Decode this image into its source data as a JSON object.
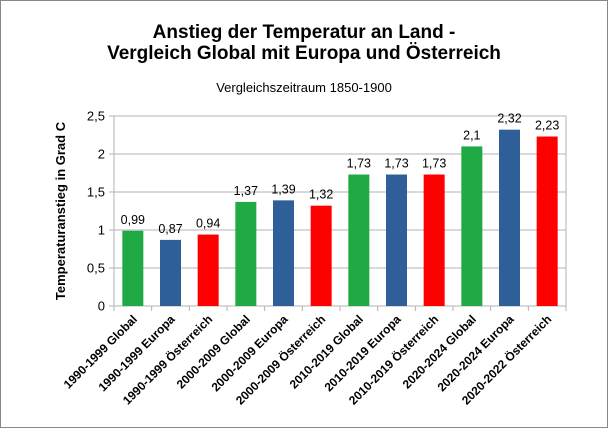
{
  "chart_data": {
    "type": "bar",
    "title": "Anstieg der Temperatur an Land -",
    "title_line2": "Vergleich Global mit Europa und Österreich",
    "subtitle": "Vergleichszeitraum 1850-1900",
    "ylabel": "Temperaturanstieg in Grad C",
    "xlabel": "",
    "ylim": [
      0,
      2.5
    ],
    "yticks": [
      "0",
      "0,5",
      "1",
      "1,5",
      "2",
      "2,5"
    ],
    "categories": [
      "1990-1999 Global",
      "1990-1999 Europa",
      "1990-1999 Österreich",
      "2000-2009 Global",
      "2000-2009 Europa",
      "2000-2009 Österreich",
      "2010-2019 Global",
      "2010-2019 Europa",
      "2010-2019 Österreich",
      "2020-2024 Global",
      "2020-2024 Europa",
      "2020-2022 Österreich"
    ],
    "values": [
      0.99,
      0.87,
      0.94,
      1.37,
      1.39,
      1.32,
      1.73,
      1.73,
      1.73,
      2.1,
      2.32,
      2.23
    ],
    "value_labels": [
      "0,99",
      "0,87",
      "0,94",
      "1,37",
      "1,39",
      "1,32",
      "1,73",
      "1,73",
      "1,73",
      "2,1",
      "2,32",
      "2,23"
    ],
    "bar_colors": [
      "#1faa44",
      "#2e5f99",
      "#ff0000",
      "#1faa44",
      "#2e5f99",
      "#ff0000",
      "#1faa44",
      "#2e5f99",
      "#ff0000",
      "#1faa44",
      "#2e5f99",
      "#ff0000"
    ],
    "grid": true,
    "legend": "none"
  }
}
